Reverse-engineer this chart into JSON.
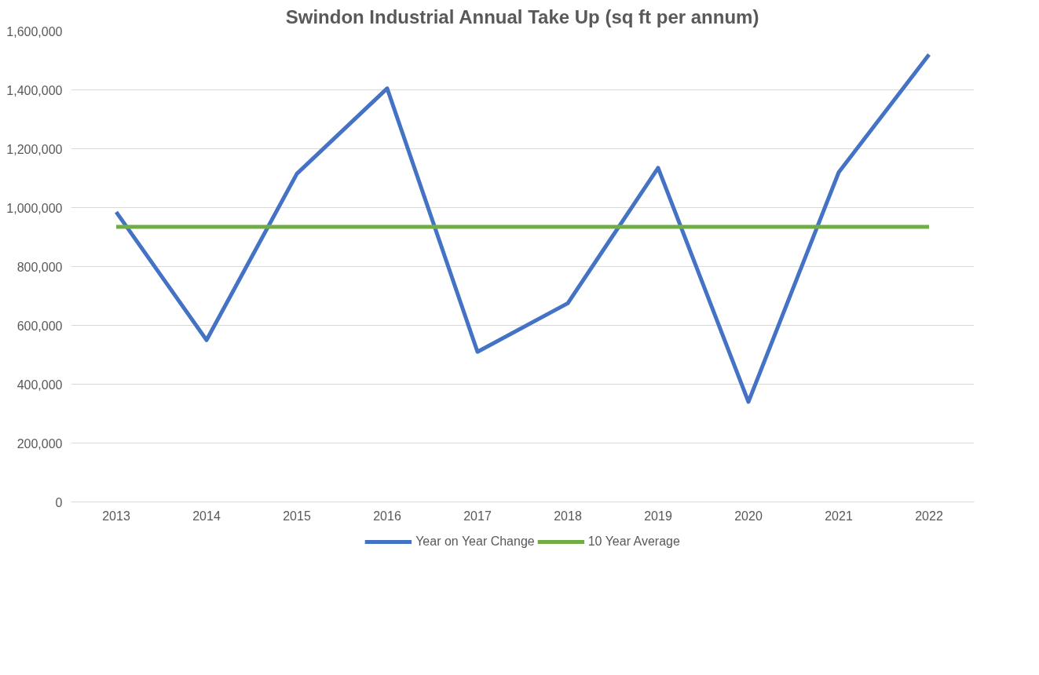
{
  "chart_data": {
    "type": "line",
    "title": "Swindon Industrial Annual Take Up (sq ft per annum)",
    "categories": [
      "2013",
      "2014",
      "2015",
      "2016",
      "2017",
      "2018",
      "2019",
      "2020",
      "2021",
      "2022"
    ],
    "series": [
      {
        "name": "Year on Year Change",
        "color": "#4472c4",
        "values": [
          985000,
          550000,
          1115000,
          1405000,
          510000,
          675000,
          1135000,
          340000,
          1120000,
          1520000
        ]
      },
      {
        "name": "10 Year Average",
        "color": "#70ad47",
        "values": [
          935000,
          935000,
          935000,
          935000,
          935000,
          935000,
          935000,
          935000,
          935000,
          935000
        ]
      }
    ],
    "ylim": [
      0,
      1600000
    ],
    "yticks": [
      0,
      {
        "value": 200000,
        "label": "200,000"
      },
      {
        "value": 400000,
        "label": "400,000"
      },
      {
        "value": 600000,
        "label": "600,000"
      },
      {
        "value": 800000,
        "label": "800,000"
      },
      {
        "value": 1000000,
        "label": "1,000,000"
      },
      {
        "value": 1200000,
        "label": "1,200,000"
      },
      {
        "value": 1400000,
        "label": "1,400,000"
      },
      {
        "value": 1600000,
        "label": "1,600,000"
      }
    ],
    "grid": "y",
    "legend": "bottom",
    "marker": "none",
    "line_style": "solid"
  }
}
